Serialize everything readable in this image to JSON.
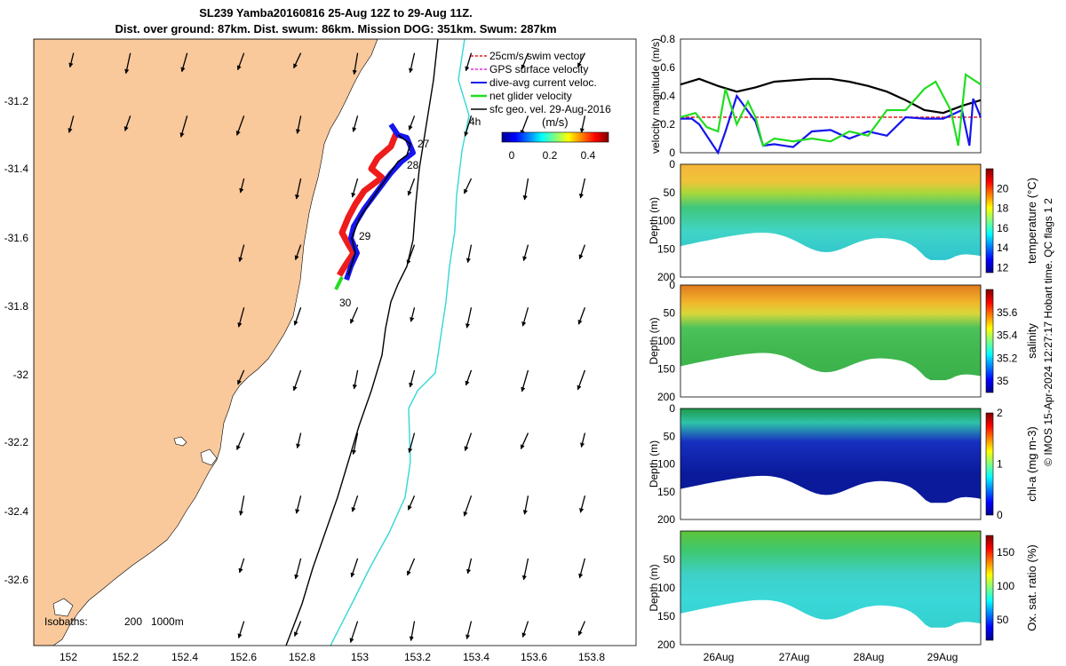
{
  "title_lines": [
    "SL239 Yamba20160816 25-Aug 12Z to 29-Aug 11Z.",
    "Dist. over ground: 87km. Dist. swum: 86km. Mission DOG: 351km. Swum: 287km"
  ],
  "colors": {
    "land": "#f9c89b",
    "sea": "#ffffff",
    "isobath_200": "#000000",
    "isobath_1000": "#35d6d6",
    "track_red": "#ee1c1c",
    "track_blue": "#1515ee",
    "gps_magenta": "#ee22ee",
    "net_green": "#22dd22"
  },
  "chart_data": [
    {
      "type": "map",
      "xlabel": "",
      "ylabel": "",
      "xlim": [
        151.86,
        153.98
      ],
      "ylim": [
        -32.77,
        -31.03
      ],
      "x_ticks": [
        "152",
        "152.2",
        "152.4",
        "152.6",
        "152.8",
        "153",
        "153.2",
        "153.4",
        "153.6",
        "153.8"
      ],
      "y_ticks": [
        "-31.2",
        "-31.4",
        "-31.6",
        "-31.8",
        "-32",
        "-32.2",
        "-32.4",
        "-32.6"
      ],
      "legend": {
        "placement": "top-right",
        "entries": [
          "25cm/s swim vector",
          "GPS surface velocity",
          "dive-avg current veloc.",
          "net glider velocity",
          "sfc geo. vel. 29-Aug-2016"
        ]
      },
      "colorbar": {
        "label": "(m/s)",
        "ticks": [
          "0",
          "0.2",
          "0.4"
        ],
        "range": [
          0,
          0.5
        ]
      },
      "day_labels": [
        {
          "text": "27",
          "lon": 153.16,
          "lat": -31.34
        },
        {
          "text": "28",
          "lon": 153.14,
          "lat": -31.43
        },
        {
          "text": "29",
          "lon": 152.99,
          "lat": -31.62
        },
        {
          "text": "30",
          "lon": 152.95,
          "lat": -31.81
        },
        {
          "text": "4h",
          "lon": 153.39,
          "lat": -31.25
        }
      ],
      "isobath_text": [
        "Isobaths:",
        "200",
        "1000m"
      ],
      "vector_field_lon": [
        152.0,
        152.2,
        152.4,
        152.6,
        152.8,
        153.0,
        153.2,
        153.4,
        153.6,
        153.8
      ],
      "vector_field_lat": [
        -31.07,
        -31.25,
        -31.43,
        -31.62,
        -31.8,
        -31.98,
        -32.16,
        -32.34,
        -32.52,
        -32.7
      ]
    },
    {
      "type": "line",
      "ylabel": "velocity magnitude (m/s)",
      "ylim": [
        0,
        0.8
      ],
      "y_ticks": [
        "0",
        "0.2",
        "0.4",
        "0.6",
        "0.8"
      ],
      "xlim": [
        0,
        4
      ],
      "series": [
        {
          "color": "#000000",
          "x": [
            0,
            0.25,
            0.5,
            0.75,
            1.0,
            1.25,
            1.5,
            1.75,
            2.0,
            2.25,
            2.5,
            2.75,
            3.0,
            3.25,
            3.5,
            3.75,
            4.0
          ],
          "values": [
            0.48,
            0.52,
            0.47,
            0.43,
            0.46,
            0.5,
            0.51,
            0.52,
            0.52,
            0.5,
            0.47,
            0.43,
            0.37,
            0.3,
            0.28,
            0.33,
            0.37
          ]
        },
        {
          "color": "#ee1c1c",
          "x": [
            0,
            4
          ],
          "values": [
            0.25,
            0.25
          ]
        },
        {
          "color": "#1515ee",
          "x": [
            0,
            0.15,
            0.25,
            0.5,
            0.6,
            0.75,
            1.0,
            1.1,
            1.25,
            1.5,
            1.75,
            2.0,
            2.25,
            2.5,
            2.75,
            3.0,
            3.25,
            3.5,
            3.75,
            3.85,
            3.9,
            4.0
          ],
          "values": [
            0.24,
            0.24,
            0.2,
            0.0,
            0.15,
            0.4,
            0.22,
            0.05,
            0.06,
            0.04,
            0.15,
            0.16,
            0.1,
            0.15,
            0.12,
            0.25,
            0.24,
            0.24,
            0.3,
            0.05,
            0.38,
            0.25
          ]
        },
        {
          "color": "#22dd22",
          "x": [
            0,
            0.2,
            0.35,
            0.5,
            0.6,
            0.75,
            0.9,
            1.0,
            1.1,
            1.25,
            1.5,
            1.75,
            2.0,
            2.25,
            2.5,
            2.75,
            3.0,
            3.25,
            3.4,
            3.6,
            3.7,
            3.8,
            4.0
          ],
          "values": [
            0.25,
            0.28,
            0.18,
            0.15,
            0.45,
            0.2,
            0.36,
            0.25,
            0.05,
            0.1,
            0.08,
            0.1,
            0.08,
            0.15,
            0.12,
            0.3,
            0.3,
            0.45,
            0.5,
            0.3,
            0.05,
            0.55,
            0.48
          ]
        }
      ]
    },
    {
      "type": "heatmap",
      "ylabel": "Depth (m)",
      "clabel": "temperature (°C)",
      "crange": [
        11.5,
        22
      ],
      "cticks": [
        "12",
        "14",
        "16",
        "18",
        "20"
      ],
      "y_ticks": [
        "0",
        "50",
        "100",
        "150",
        "200"
      ]
    },
    {
      "type": "heatmap",
      "ylabel": "Depth (m)",
      "clabel": "salinity",
      "crange": [
        34.9,
        35.8
      ],
      "cticks": [
        "35",
        "35.2",
        "35.4",
        "35.6"
      ],
      "y_ticks": [
        "0",
        "50",
        "100",
        "150",
        "200"
      ]
    },
    {
      "type": "heatmap",
      "ylabel": "Depth (m)",
      "clabel": "chl-a (mg m-3)",
      "crange": [
        0,
        2
      ],
      "cticks": [
        "0",
        "1",
        "2"
      ],
      "y_ticks": [
        "0",
        "50",
        "100",
        "150",
        "200"
      ]
    },
    {
      "type": "heatmap",
      "ylabel": "Depth (m)",
      "clabel": "Ox. sat. ratio (%)",
      "crange": [
        20,
        175
      ],
      "cticks": [
        "50",
        "100",
        "150"
      ],
      "y_ticks": [
        "50",
        "100",
        "150",
        "200"
      ],
      "x_ticks": [
        "26Aug",
        "27Aug",
        "28Aug",
        "29Aug"
      ]
    }
  ],
  "footer_note": "© IMOS 15-Apr-2024 12:27:17 Hobart time. QC flags 1  2"
}
